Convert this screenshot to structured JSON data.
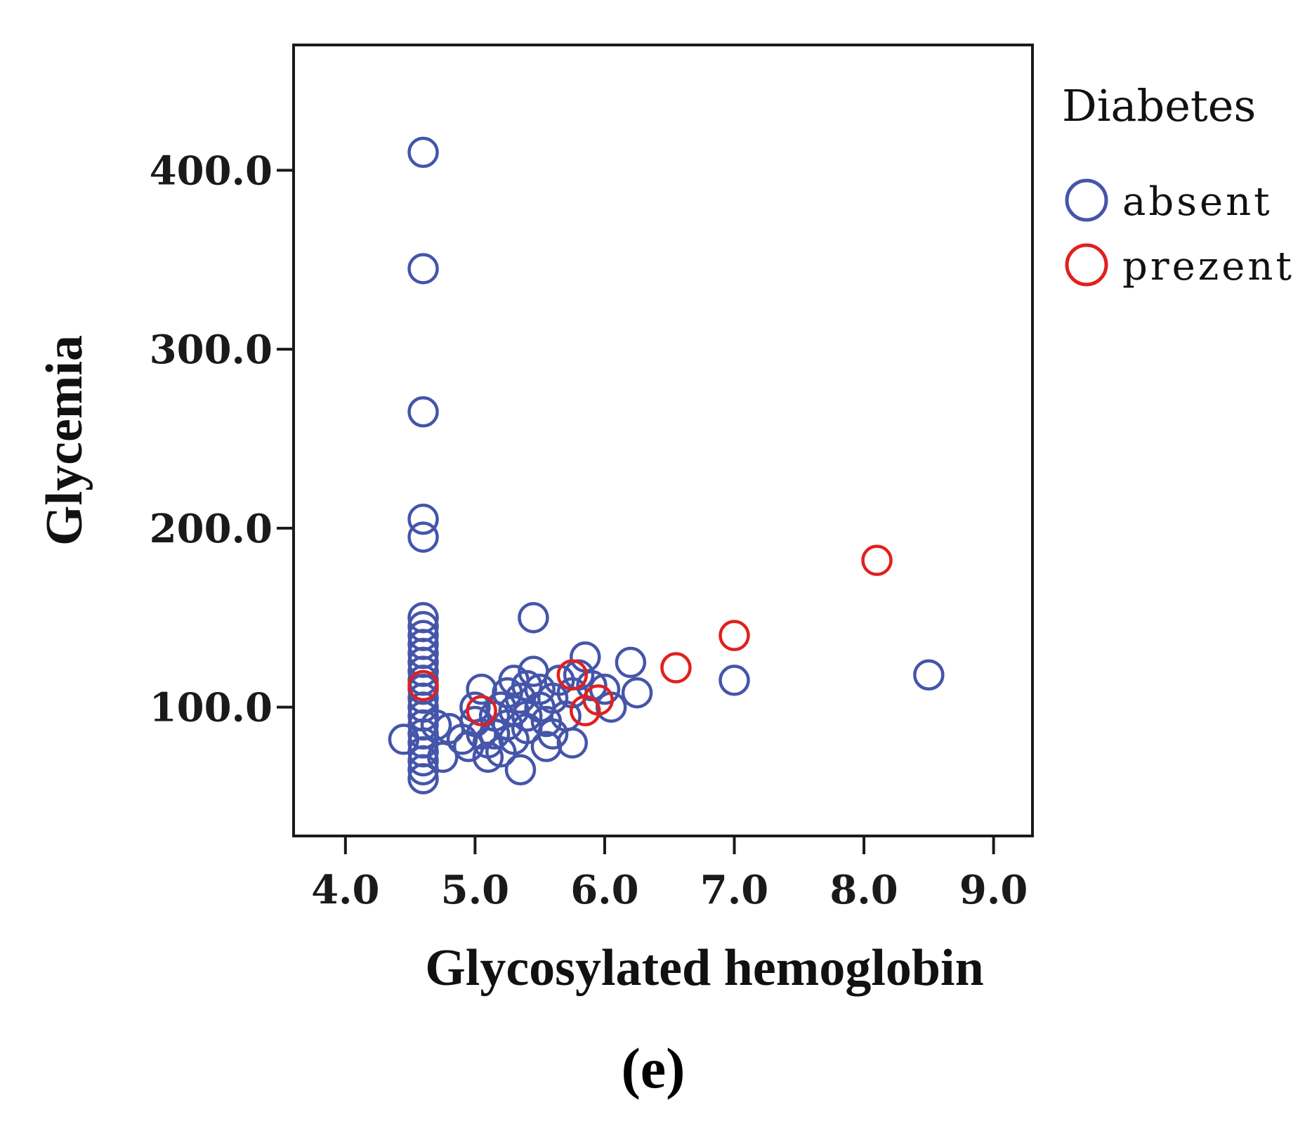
{
  "chart_data": {
    "type": "scatter",
    "title": "",
    "xlabel": "Glycosylated hemoglobin",
    "ylabel": "Glycemia",
    "xlim": [
      3.6,
      9.3
    ],
    "ylim": [
      28,
      470
    ],
    "xticks": [
      4.0,
      5.0,
      6.0,
      7.0,
      8.0,
      9.0
    ],
    "xtick_labels": [
      "4.0",
      "5.0",
      "6.0",
      "7.0",
      "8.0",
      "9.0"
    ],
    "yticks": [
      100,
      200,
      300,
      400
    ],
    "ytick_labels": [
      "100.0",
      "200.0",
      "300.0",
      "400.0"
    ],
    "grid": false,
    "legend": {
      "title": "Diabetes",
      "position": "right"
    },
    "series": [
      {
        "name": "absent",
        "color": "#4455aa",
        "points": [
          [
            4.6,
            410
          ],
          [
            4.6,
            345
          ],
          [
            4.6,
            265
          ],
          [
            4.6,
            205
          ],
          [
            4.6,
            195
          ],
          [
            4.6,
            150
          ],
          [
            4.6,
            145
          ],
          [
            4.6,
            140
          ],
          [
            4.6,
            135
          ],
          [
            4.6,
            130
          ],
          [
            4.6,
            125
          ],
          [
            4.6,
            120
          ],
          [
            4.6,
            115
          ],
          [
            4.6,
            110
          ],
          [
            4.6,
            105
          ],
          [
            4.6,
            100
          ],
          [
            4.6,
            95
          ],
          [
            4.6,
            90
          ],
          [
            4.6,
            85
          ],
          [
            4.6,
            80
          ],
          [
            4.6,
            75
          ],
          [
            4.6,
            70
          ],
          [
            4.6,
            65
          ],
          [
            4.6,
            60
          ],
          [
            4.45,
            82
          ],
          [
            4.75,
            72
          ],
          [
            4.7,
            90
          ],
          [
            4.8,
            88
          ],
          [
            4.9,
            82
          ],
          [
            4.95,
            78
          ],
          [
            5.0,
            92
          ],
          [
            5.05,
            85
          ],
          [
            5.1,
            80
          ],
          [
            5.05,
            110
          ],
          [
            5.15,
            95
          ],
          [
            5.2,
            100
          ],
          [
            5.25,
            90
          ],
          [
            5.3,
            82
          ],
          [
            5.3,
            115
          ],
          [
            5.35,
            105
          ],
          [
            5.4,
            95
          ],
          [
            5.4,
            88
          ],
          [
            5.45,
            120
          ],
          [
            5.5,
            110
          ],
          [
            5.5,
            100
          ],
          [
            5.55,
            92
          ],
          [
            5.6,
            105
          ],
          [
            5.6,
            85
          ],
          [
            5.65,
            115
          ],
          [
            5.45,
            150
          ],
          [
            5.35,
            65
          ],
          [
            5.2,
            75
          ],
          [
            5.55,
            78
          ],
          [
            5.7,
            95
          ],
          [
            5.75,
            108
          ],
          [
            5.8,
            118
          ],
          [
            5.85,
            128
          ],
          [
            5.9,
            112
          ],
          [
            5.75,
            80
          ],
          [
            6.0,
            110
          ],
          [
            6.2,
            125
          ],
          [
            6.25,
            108
          ],
          [
            6.05,
            100
          ],
          [
            5.25,
            108
          ],
          [
            5.3,
            98
          ],
          [
            5.4,
            112
          ],
          [
            5.15,
            85
          ],
          [
            5.1,
            72
          ],
          [
            5.0,
            100
          ],
          [
            7.0,
            115
          ],
          [
            8.5,
            118
          ]
        ]
      },
      {
        "name": "prezent",
        "color": "#e02020",
        "points": [
          [
            4.6,
            112
          ],
          [
            5.05,
            98
          ],
          [
            5.75,
            118
          ],
          [
            5.85,
            98
          ],
          [
            5.95,
            104
          ],
          [
            6.55,
            122
          ],
          [
            7.0,
            140
          ],
          [
            8.1,
            182
          ]
        ]
      }
    ]
  },
  "panel_label": "(e)"
}
